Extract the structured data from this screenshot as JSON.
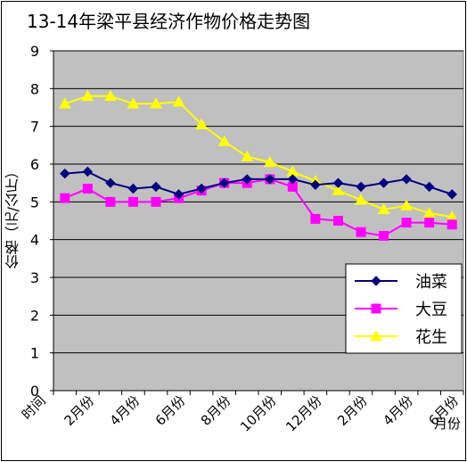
{
  "chart_data": {
    "type": "line",
    "title": "13-14年梁平县经济作物价格走势图",
    "ylabel": "价格（元/公斤）",
    "xlabel": "月份",
    "ylim": [
      0,
      9
    ],
    "yticks": [
      0,
      1,
      2,
      3,
      4,
      5,
      6,
      7,
      8,
      9
    ],
    "xtick_labels": [
      "时间",
      "2月份",
      "4月份",
      "6月份",
      "8月份",
      "10月份",
      "12月份",
      "2月份",
      "4月份",
      "6月份"
    ],
    "grid": true,
    "legend_position": "right",
    "series": [
      {
        "name": "油菜",
        "color": "#000080",
        "marker": "diamond",
        "values": [
          5.75,
          5.8,
          5.5,
          5.35,
          5.4,
          5.2,
          5.35,
          5.5,
          5.6,
          5.6,
          5.6,
          5.45,
          5.5,
          5.4,
          5.5,
          5.6,
          5.4,
          5.2
        ]
      },
      {
        "name": "大豆",
        "color": "#ff00ff",
        "marker": "square",
        "values": [
          5.1,
          5.35,
          5.0,
          5.0,
          5.0,
          5.1,
          5.3,
          5.5,
          5.5,
          5.6,
          5.4,
          4.55,
          4.5,
          4.2,
          4.1,
          4.45,
          4.45,
          4.4
        ]
      },
      {
        "name": "花生",
        "color": "#ffff00",
        "marker": "triangle",
        "values": [
          7.6,
          7.8,
          7.8,
          7.6,
          7.6,
          7.65,
          7.05,
          6.6,
          6.2,
          6.05,
          5.8,
          5.55,
          5.3,
          5.05,
          4.8,
          4.9,
          4.7,
          4.6
        ]
      }
    ]
  }
}
